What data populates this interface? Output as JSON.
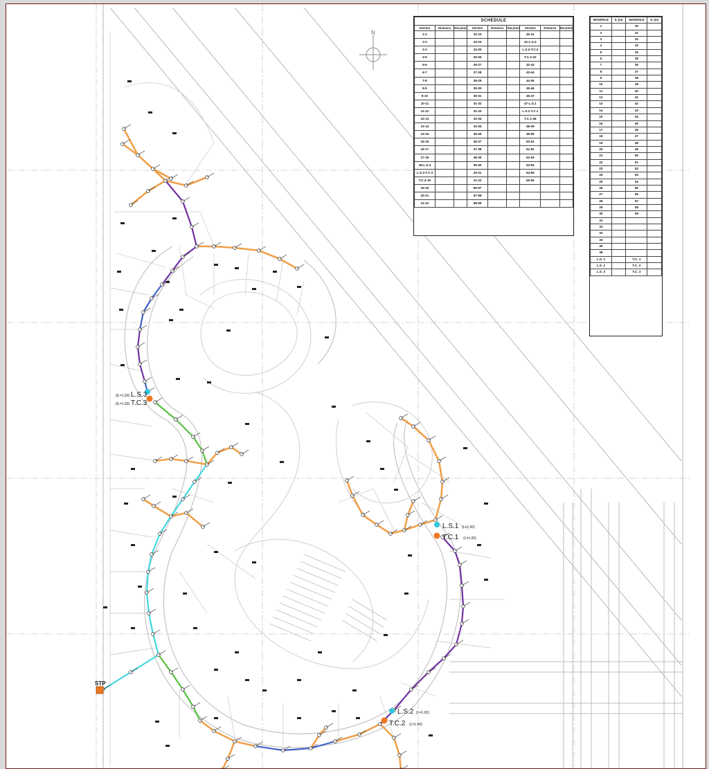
{
  "colors": {
    "pipe_orange": "#f0a04b",
    "pipe_purple": "#7030a0",
    "pipe_blue": "#4060c8",
    "pipe_green": "#55c040",
    "pipe_cyan": "#40d8e0",
    "node_orange": "#f07820",
    "node_cyan": "#30c8e0",
    "border": "#6b1a1a"
  },
  "icons": [
    "north-arrow-icon"
  ],
  "north_label": "N",
  "schedule": {
    "title": "SCHEDULE",
    "headers": [
      "Section",
      "Distance",
      "Dia.(mm)",
      "Section",
      "Distance",
      "Dia.(mm)",
      "Section",
      "Distance",
      "Dia.(mm)"
    ],
    "rows": [
      [
        "1-2",
        "",
        "",
        "22-23",
        "",
        "",
        "40-41",
        "",
        ""
      ],
      [
        "2-3",
        "",
        "",
        "23-24",
        "",
        "",
        "41-L.S.2",
        "",
        ""
      ],
      [
        "3-4",
        "",
        "",
        "24-25",
        "",
        "",
        "L.S.2-T.C.2",
        "",
        ""
      ],
      [
        "4-5",
        "",
        "",
        "25-26",
        "",
        "",
        "T.C.2-42",
        "",
        ""
      ],
      [
        "5-6",
        "",
        "",
        "26-27",
        "",
        "",
        "42-43",
        "",
        ""
      ],
      [
        "6-7",
        "",
        "",
        "27-28",
        "",
        "",
        "43-44",
        "",
        ""
      ],
      [
        "7-8",
        "",
        "",
        "28-29",
        "",
        "",
        "44-45",
        "",
        ""
      ],
      [
        "8-9",
        "",
        "",
        "29-30",
        "",
        "",
        "45-46",
        "",
        ""
      ],
      [
        "9-10",
        "",
        "",
        "30-31",
        "",
        "",
        "46-47",
        "",
        ""
      ],
      [
        "10-11",
        "",
        "",
        "31-32",
        "",
        "",
        "47-L.S.1",
        "",
        ""
      ],
      [
        "11-12",
        "",
        "",
        "32-33",
        "",
        "",
        "L.S.1-T.C.1",
        "",
        ""
      ],
      [
        "12-13",
        "",
        "",
        "33-34",
        "",
        "",
        "T.C.1-48",
        "",
        ""
      ],
      [
        "13-14",
        "",
        "",
        "34-35",
        "",
        "",
        "48-49",
        "",
        ""
      ],
      [
        "14-15",
        "",
        "",
        "35-36",
        "",
        "",
        "49-50",
        "",
        ""
      ],
      [
        "15-16",
        "",
        "",
        "36-37",
        "",
        "",
        "50-51",
        "",
        ""
      ],
      [
        "16-17",
        "",
        "",
        "37-38",
        "",
        "",
        "51-52",
        "",
        ""
      ],
      [
        "17-18",
        "",
        "",
        "38-39",
        "",
        "",
        "52-53",
        "",
        ""
      ],
      [
        "18-L.S.3",
        "",
        "",
        "39-40",
        "",
        "",
        "53-54",
        "",
        ""
      ],
      [
        "L.S.3-T.C.3",
        "",
        "",
        "20-21",
        "",
        "",
        "54-55",
        "",
        ""
      ],
      [
        "T.C.3-19",
        "",
        "",
        "21-22",
        "",
        "",
        "55-56",
        "",
        ""
      ],
      [
        "19-20",
        "",
        "",
        "56-57",
        "",
        "",
        "",
        "",
        ""
      ],
      [
        "20-21",
        "",
        "",
        "57-58",
        "",
        "",
        "",
        "",
        ""
      ],
      [
        "21-22",
        "",
        "",
        "58-59",
        "",
        "",
        "",
        "",
        ""
      ]
    ]
  },
  "manhole_table": {
    "headers": [
      "MANHOLE",
      "IL (m)",
      "MANHOLE",
      "IL (m)"
    ],
    "rows": [
      [
        "1",
        "",
        "30",
        ""
      ],
      [
        "2",
        "",
        "31",
        ""
      ],
      [
        "3",
        "",
        "32",
        ""
      ],
      [
        "4",
        "",
        "33",
        ""
      ],
      [
        "5",
        "",
        "34",
        ""
      ],
      [
        "6",
        "",
        "35",
        ""
      ],
      [
        "7",
        "",
        "36",
        ""
      ],
      [
        "8",
        "",
        "37",
        ""
      ],
      [
        "9",
        "",
        "38",
        ""
      ],
      [
        "10",
        "",
        "39",
        ""
      ],
      [
        "11",
        "",
        "40",
        ""
      ],
      [
        "12",
        "",
        "41",
        ""
      ],
      [
        "13",
        "",
        "42",
        ""
      ],
      [
        "14",
        "",
        "43",
        ""
      ],
      [
        "15",
        "",
        "44",
        ""
      ],
      [
        "16",
        "",
        "45",
        ""
      ],
      [
        "17",
        "",
        "46",
        ""
      ],
      [
        "18",
        "",
        "47",
        ""
      ],
      [
        "19",
        "",
        "48",
        ""
      ],
      [
        "20",
        "",
        "49",
        ""
      ],
      [
        "21",
        "",
        "50",
        ""
      ],
      [
        "22",
        "",
        "51",
        ""
      ],
      [
        "23",
        "",
        "52",
        ""
      ],
      [
        "24",
        "",
        "53",
        ""
      ],
      [
        "25",
        "",
        "54",
        ""
      ],
      [
        "26",
        "",
        "55",
        ""
      ],
      [
        "27",
        "",
        "56",
        ""
      ],
      [
        "28",
        "",
        "57",
        ""
      ],
      [
        "29",
        "",
        "58",
        ""
      ],
      [
        "30",
        "",
        "59",
        ""
      ],
      [
        "31",
        "",
        "",
        ""
      ],
      [
        "32",
        "",
        "",
        ""
      ],
      [
        "33",
        "",
        "",
        ""
      ],
      [
        "34",
        "",
        "",
        ""
      ],
      [
        "35",
        "",
        "",
        ""
      ],
      [
        "36",
        "",
        "",
        ""
      ],
      [
        "L.S. 1",
        "",
        "T.C. 1",
        ""
      ],
      [
        "L.S. 2",
        "",
        "T.C. 2",
        ""
      ],
      [
        "L.S. 3",
        "",
        "T.C. 3",
        ""
      ]
    ]
  },
  "labels": {
    "ls1": "L.S.1",
    "ls1_sub": "(L=1.00)",
    "tc1": "T.C.1",
    "tc1_sub": "(L=1.00)",
    "ls2": "L.S.2",
    "ls2_sub": "(L=1.00)",
    "tc2": "T.C.2",
    "tc2_sub": "(L=1.00)",
    "ls3": "L.S.3",
    "ls3_pre": "(IL=1.00)",
    "tc3": "T.C.3",
    "tc3_pre": "(IL=1.00)",
    "stp": "STP"
  }
}
